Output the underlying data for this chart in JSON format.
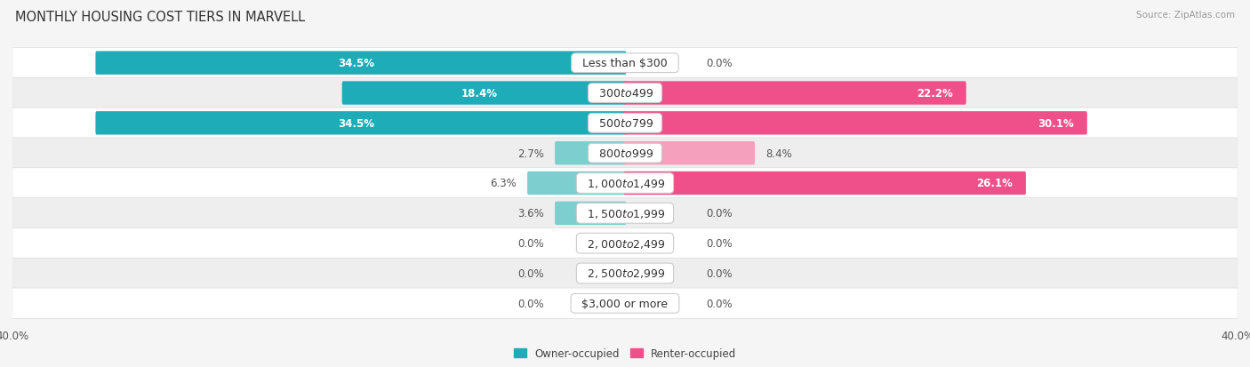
{
  "title": "MONTHLY HOUSING COST TIERS IN MARVELL",
  "source": "Source: ZipAtlas.com",
  "categories": [
    "Less than $300",
    "$300 to $499",
    "$500 to $799",
    "$800 to $999",
    "$1,000 to $1,499",
    "$1,500 to $1,999",
    "$2,000 to $2,499",
    "$2,500 to $2,999",
    "$3,000 or more"
  ],
  "owner_values": [
    34.5,
    18.4,
    34.5,
    2.7,
    6.3,
    3.6,
    0.0,
    0.0,
    0.0
  ],
  "renter_values": [
    0.0,
    22.2,
    30.1,
    8.4,
    26.1,
    0.0,
    0.0,
    0.0,
    0.0
  ],
  "owner_color_strong": "#1EACB8",
  "owner_color_light": "#7DCECE",
  "renter_color_strong": "#F0508A",
  "renter_color_light": "#F5A0BC",
  "bg_color": "#f5f5f5",
  "row_colors": [
    "#ffffff",
    "#eeeeee"
  ],
  "axis_limit": 40.0,
  "bar_height": 0.62,
  "min_bar_width": 4.5,
  "label_inside_threshold": 10.0,
  "title_fontsize": 10.5,
  "label_fontsize": 8.5,
  "cat_fontsize": 9.0,
  "source_fontsize": 7.5,
  "legend_fontsize": 8.5,
  "legend_owner": "Owner-occupied",
  "legend_renter": "Renter-occupied"
}
